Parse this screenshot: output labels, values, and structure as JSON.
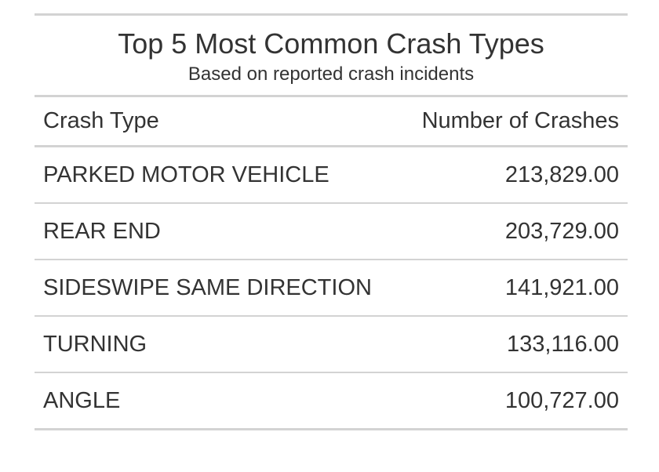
{
  "chart_data": {
    "type": "table",
    "title": "Top 5 Most Common Crash Types",
    "subtitle": "Based on reported crash incidents",
    "columns": [
      "Crash Type",
      "Number of Crashes"
    ],
    "rows": [
      {
        "crash_type": "PARKED MOTOR VEHICLE",
        "number": "213,829.00",
        "value": 213829
      },
      {
        "crash_type": "REAR END",
        "number": "203,729.00",
        "value": 203729
      },
      {
        "crash_type": "SIDESWIPE SAME DIRECTION",
        "number": "141,921.00",
        "value": 141921
      },
      {
        "crash_type": "TURNING",
        "number": "133,116.00",
        "value": 133116
      },
      {
        "crash_type": "ANGLE",
        "number": "100,727.00",
        "value": 100727
      }
    ]
  }
}
